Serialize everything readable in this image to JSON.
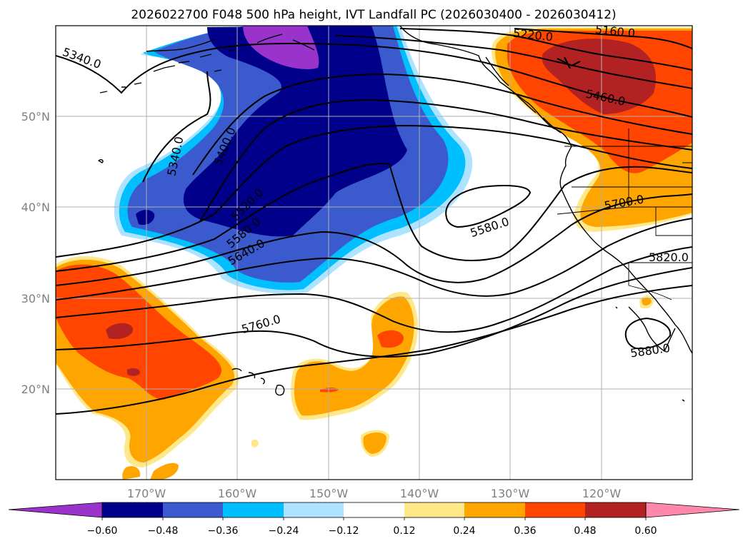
{
  "title": "2026022700 F048 500 hPa height, IVT Landfall PC (2026030400 - 2026030412)",
  "x_ticks": [
    "170°W",
    "160°W",
    "150°W",
    "140°W",
    "130°W",
    "120°W"
  ],
  "y_ticks": [
    "50°N",
    "40°N",
    "30°N",
    "20°N"
  ],
  "colorbar": {
    "tick_labels": [
      "−0.60",
      "−0.48",
      "−0.36",
      "−0.24",
      "−0.12",
      "0.12",
      "0.24",
      "0.36",
      "0.48",
      "0.60"
    ],
    "colors": [
      "#9933cc",
      "#00008b",
      "#3a5acd",
      "#00bfff",
      "#aee3ff",
      "#ffffff",
      "#ffe88a",
      "#ffa500",
      "#ff4500",
      "#b22222",
      "#ff88aa"
    ]
  },
  "contour_labels": [
    {
      "text": "5160.0"
    },
    {
      "text": "5220.0"
    },
    {
      "text": "5340.0"
    },
    {
      "text": "5340.0"
    },
    {
      "text": "5400.0"
    },
    {
      "text": "5460.0"
    },
    {
      "text": "5520.0"
    },
    {
      "text": "5580.0"
    },
    {
      "text": "5580.0"
    },
    {
      "text": "5640.0"
    },
    {
      "text": "5700.0"
    },
    {
      "text": "5760.0"
    },
    {
      "text": "5820.0"
    },
    {
      "text": "5880.0"
    }
  ],
  "map_data": {
    "lon_range": [
      -180,
      -110
    ],
    "lat_range": [
      10,
      60
    ],
    "fields": [
      "500 hPa geopotential height (contours)",
      "IVT landfall principal component (shaded)"
    ]
  }
}
